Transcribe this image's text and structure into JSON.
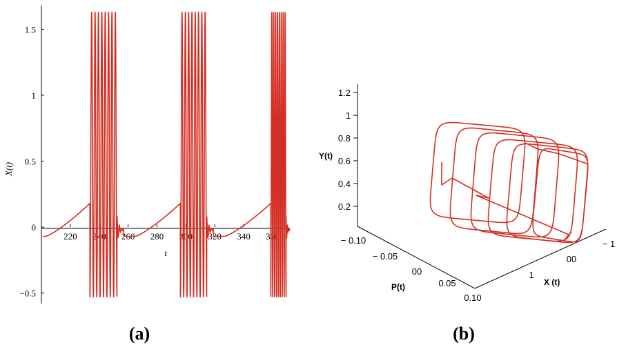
{
  "panels": {
    "a": {
      "caption": "(a)"
    },
    "b": {
      "caption": "(b)"
    }
  },
  "chart_data": [
    {
      "type": "line",
      "panel": "a",
      "title": "",
      "xlabel": "t",
      "ylabel": "X(t)",
      "xlim": [
        200,
        372
      ],
      "ylim": [
        -0.58,
        1.68
      ],
      "x_ticks": [
        220,
        240,
        260,
        280,
        300,
        320,
        340,
        360
      ],
      "y_ticks": [
        -0.5,
        0,
        0.5,
        1,
        1.5
      ],
      "y_tick_labels": [
        "−0.5",
        "0",
        "0.5",
        "1",
        "1.5"
      ],
      "line_color": "#d42e22",
      "bursts": [
        {
          "t_start": 233.6,
          "t_end": 257.0,
          "slow_start": 203.0
        },
        {
          "t_start": 296.2,
          "t_end": 319.0,
          "slow_start": 265.0
        },
        {
          "t_start": 358.8,
          "t_end": 372.0,
          "slow_start": 327.0
        }
      ],
      "spike_max": 1.63,
      "spike_min": -0.53,
      "spikes_per_burst": 8,
      "baseline_level": -0.07,
      "plateau_level": 0.18
    },
    {
      "type": "line",
      "panel": "b",
      "title": "",
      "plot_kind": "3d trajectory",
      "xlabel": "X (t)",
      "ylabel": "P(t)",
      "zlabel": "Y(t)",
      "line_color": "#d42e22",
      "z_ticks": [
        0.2,
        0.4,
        0.6,
        0.8,
        1,
        1.2
      ],
      "z_tick_labels": [
        "0.2",
        "0.4",
        "0.6",
        "0.8",
        "1",
        "1.2"
      ],
      "p_ticks": [
        "− 0.10",
        "− 0.05",
        "00",
        "0.05",
        "0.10"
      ],
      "x_ticks": [
        "1",
        "00",
        "− 1"
      ],
      "loops": 6
    }
  ]
}
